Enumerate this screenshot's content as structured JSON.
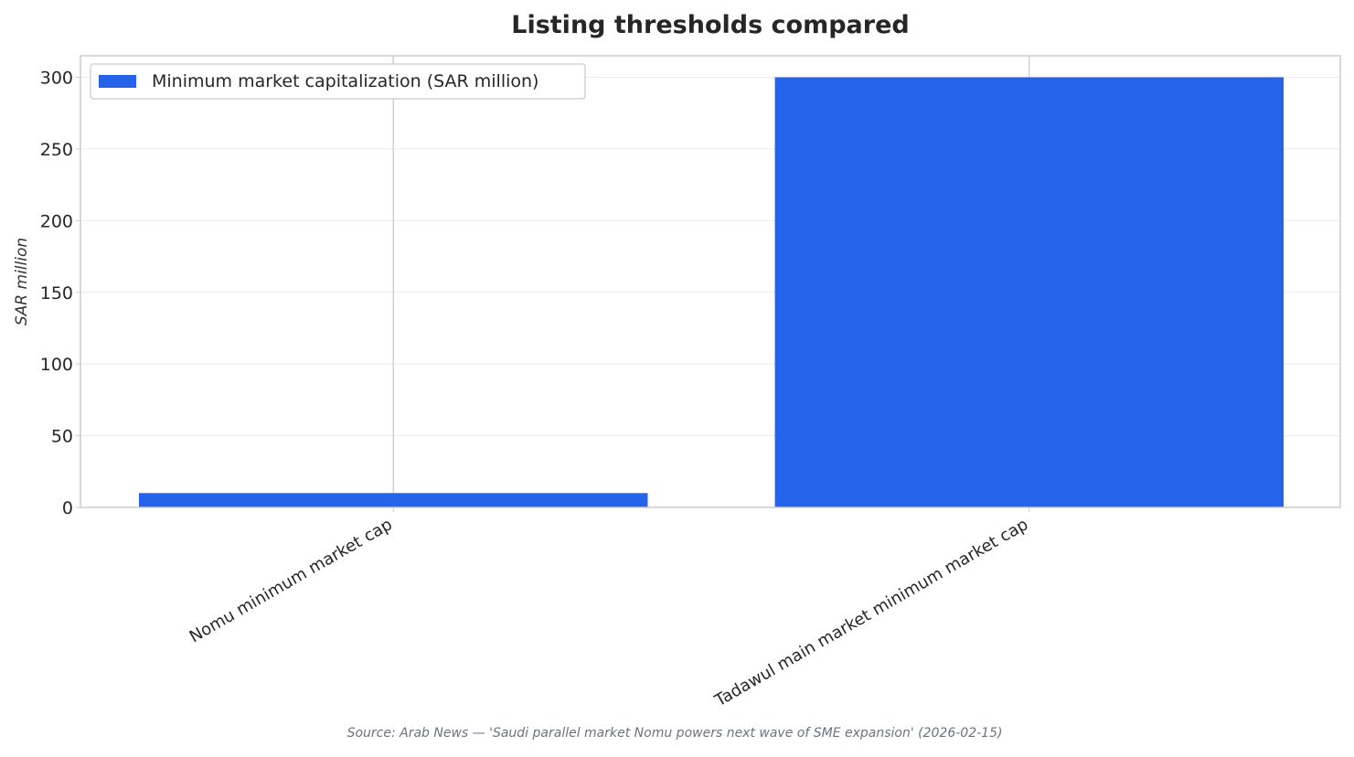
{
  "chart_data": {
    "type": "bar",
    "title": "Listing thresholds compared",
    "xlabel": "",
    "ylabel": "SAR million",
    "categories": [
      "Nomu minimum market cap",
      "Tadawul main market minimum market cap"
    ],
    "series": [
      {
        "name": "Minimum market capitalization (SAR million)",
        "values": [
          10,
          300
        ],
        "color": "#2563eb"
      }
    ],
    "ylim": [
      0,
      315
    ],
    "yticks": [
      0,
      50,
      100,
      150,
      200,
      250,
      300
    ],
    "grid": true,
    "legend_position": "top-left",
    "source": "Source: Arab News — 'Saudi parallel market Nomu powers next wave of SME expansion' (2026-02-15)"
  }
}
